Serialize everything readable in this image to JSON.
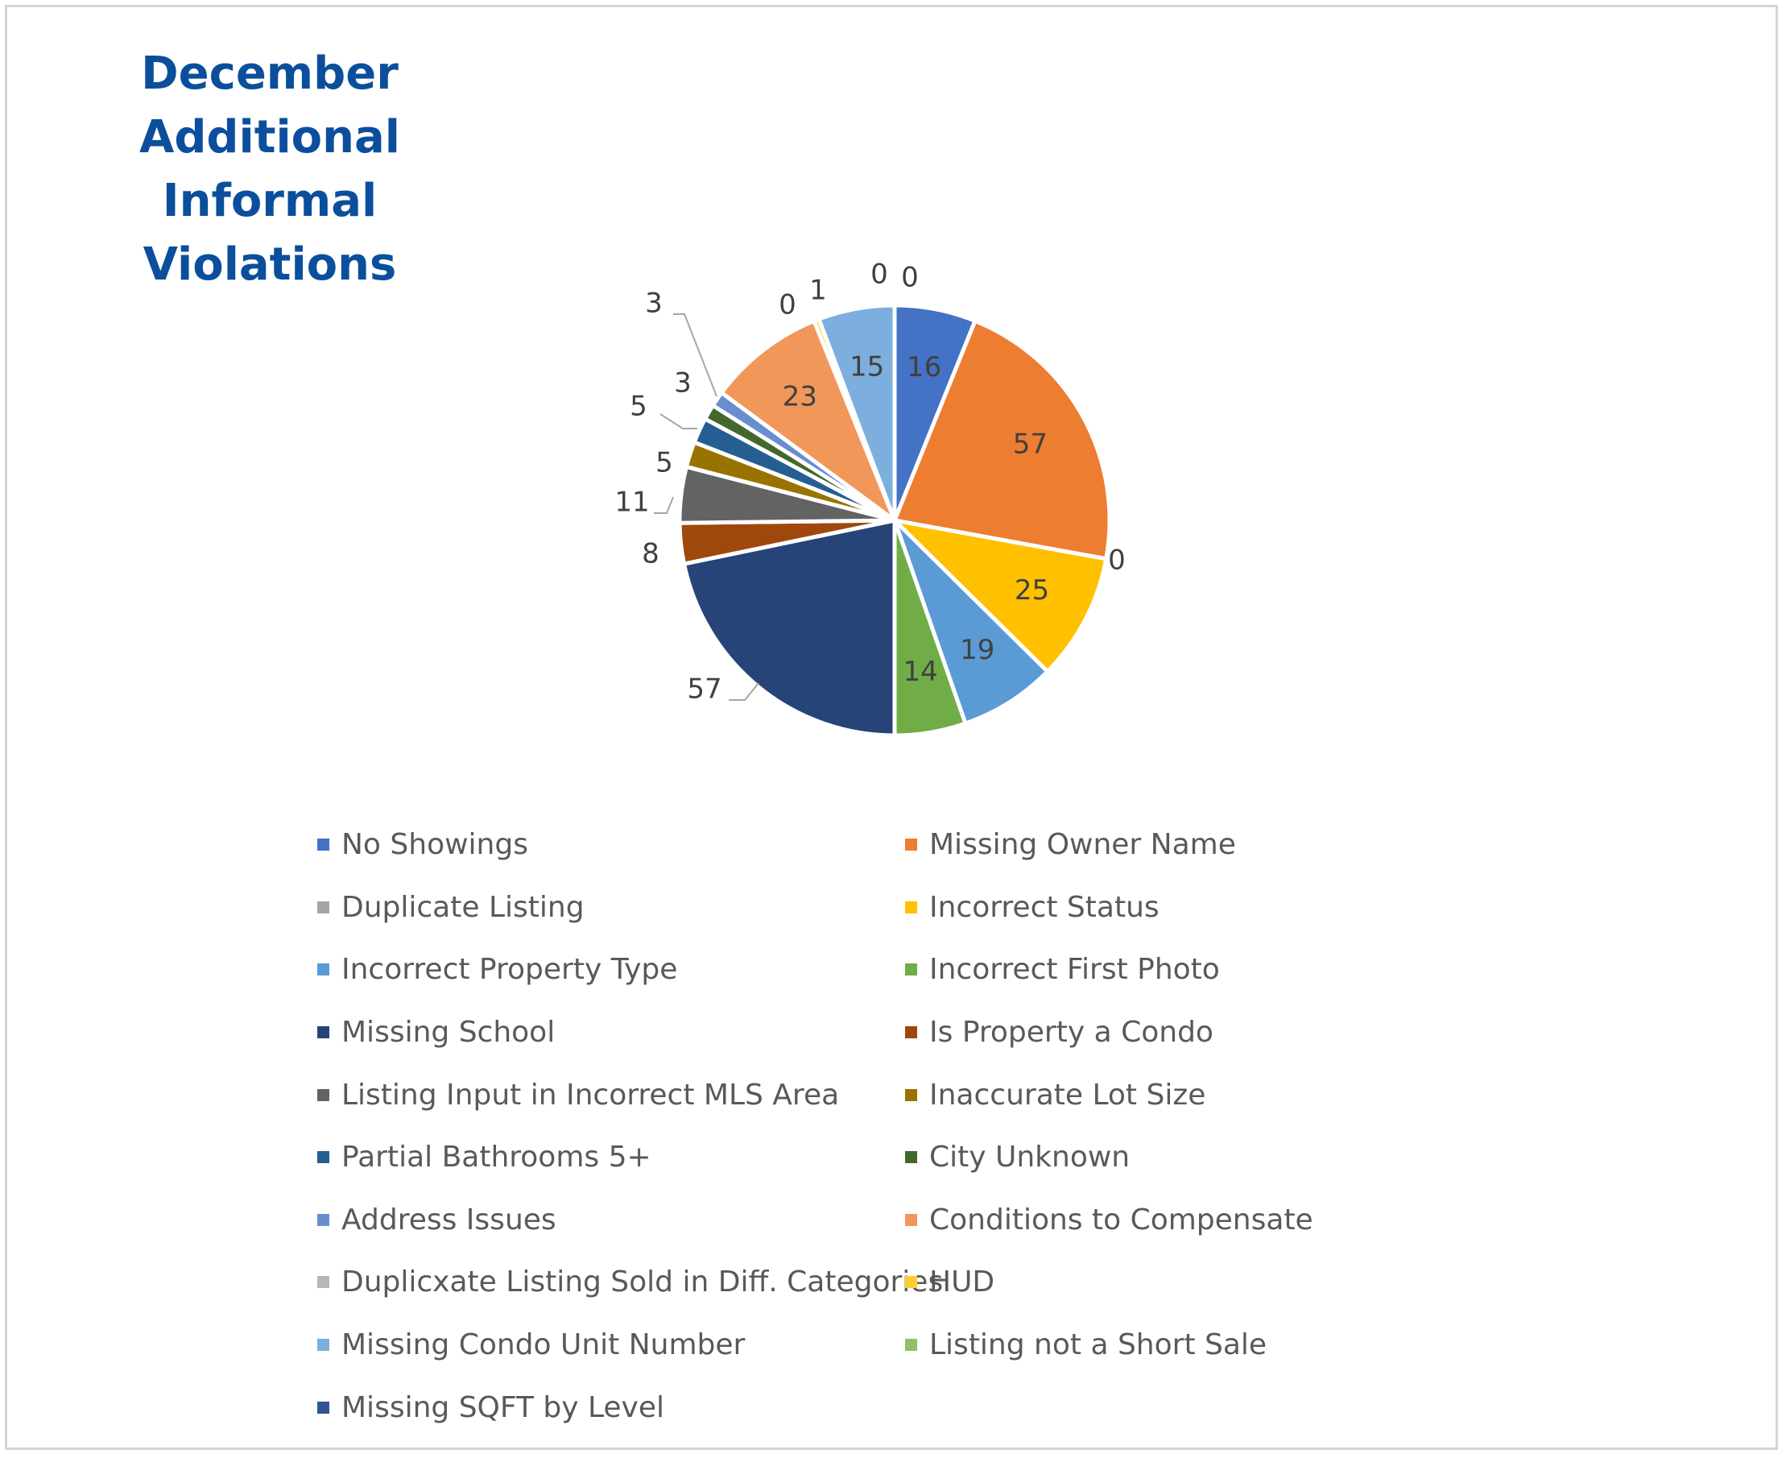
{
  "chart_data": {
    "type": "pie",
    "title": [
      "December",
      "Additional",
      "Informal Violations"
    ],
    "series": [
      {
        "name": "No Showings",
        "value": 16,
        "color": "#4472C4"
      },
      {
        "name": "Missing Owner Name",
        "value": 57,
        "color": "#ED7D31"
      },
      {
        "name": "Duplicate Listing",
        "value": 0,
        "color": "#A5A5A5"
      },
      {
        "name": "Incorrect Status",
        "value": 25,
        "color": "#FFC000"
      },
      {
        "name": "Incorrect Property Type",
        "value": 19,
        "color": "#5B9BD5"
      },
      {
        "name": "Incorrect First Photo",
        "value": 14,
        "color": "#70AD47"
      },
      {
        "name": "Missing School",
        "value": 57,
        "color": "#264478"
      },
      {
        "name": "Is Property a Condo",
        "value": 8,
        "color": "#9E480E"
      },
      {
        "name": "Listing Input in Incorrect MLS Area",
        "value": 11,
        "color": "#636363"
      },
      {
        "name": "Inaccurate Lot Size",
        "value": 5,
        "color": "#997300"
      },
      {
        "name": "Partial Bathrooms 5+",
        "value": 5,
        "color": "#255E91"
      },
      {
        "name": "City Unknown",
        "value": 3,
        "color": "#43682B"
      },
      {
        "name": "Address Issues",
        "value": 3,
        "color": "#698ED0"
      },
      {
        "name": "Conditions to Compensate",
        "value": 23,
        "color": "#F1975A"
      },
      {
        "name": "Duplicxate Listing Sold in Diff. Categories",
        "value": 0,
        "color": "#B7B7B7"
      },
      {
        "name": "HUD",
        "value": 1,
        "color": "#FFCD33"
      },
      {
        "name": "Missing Condo Unit Number",
        "value": 15,
        "color": "#7CAFDD"
      },
      {
        "name": "Listing not a Short Sale",
        "value": 0,
        "color": "#8CC168"
      },
      {
        "name": "Missing SQFT by Level",
        "value": 0,
        "color": "#2F5597"
      }
    ],
    "legend": "bottom",
    "data_labels": true
  }
}
